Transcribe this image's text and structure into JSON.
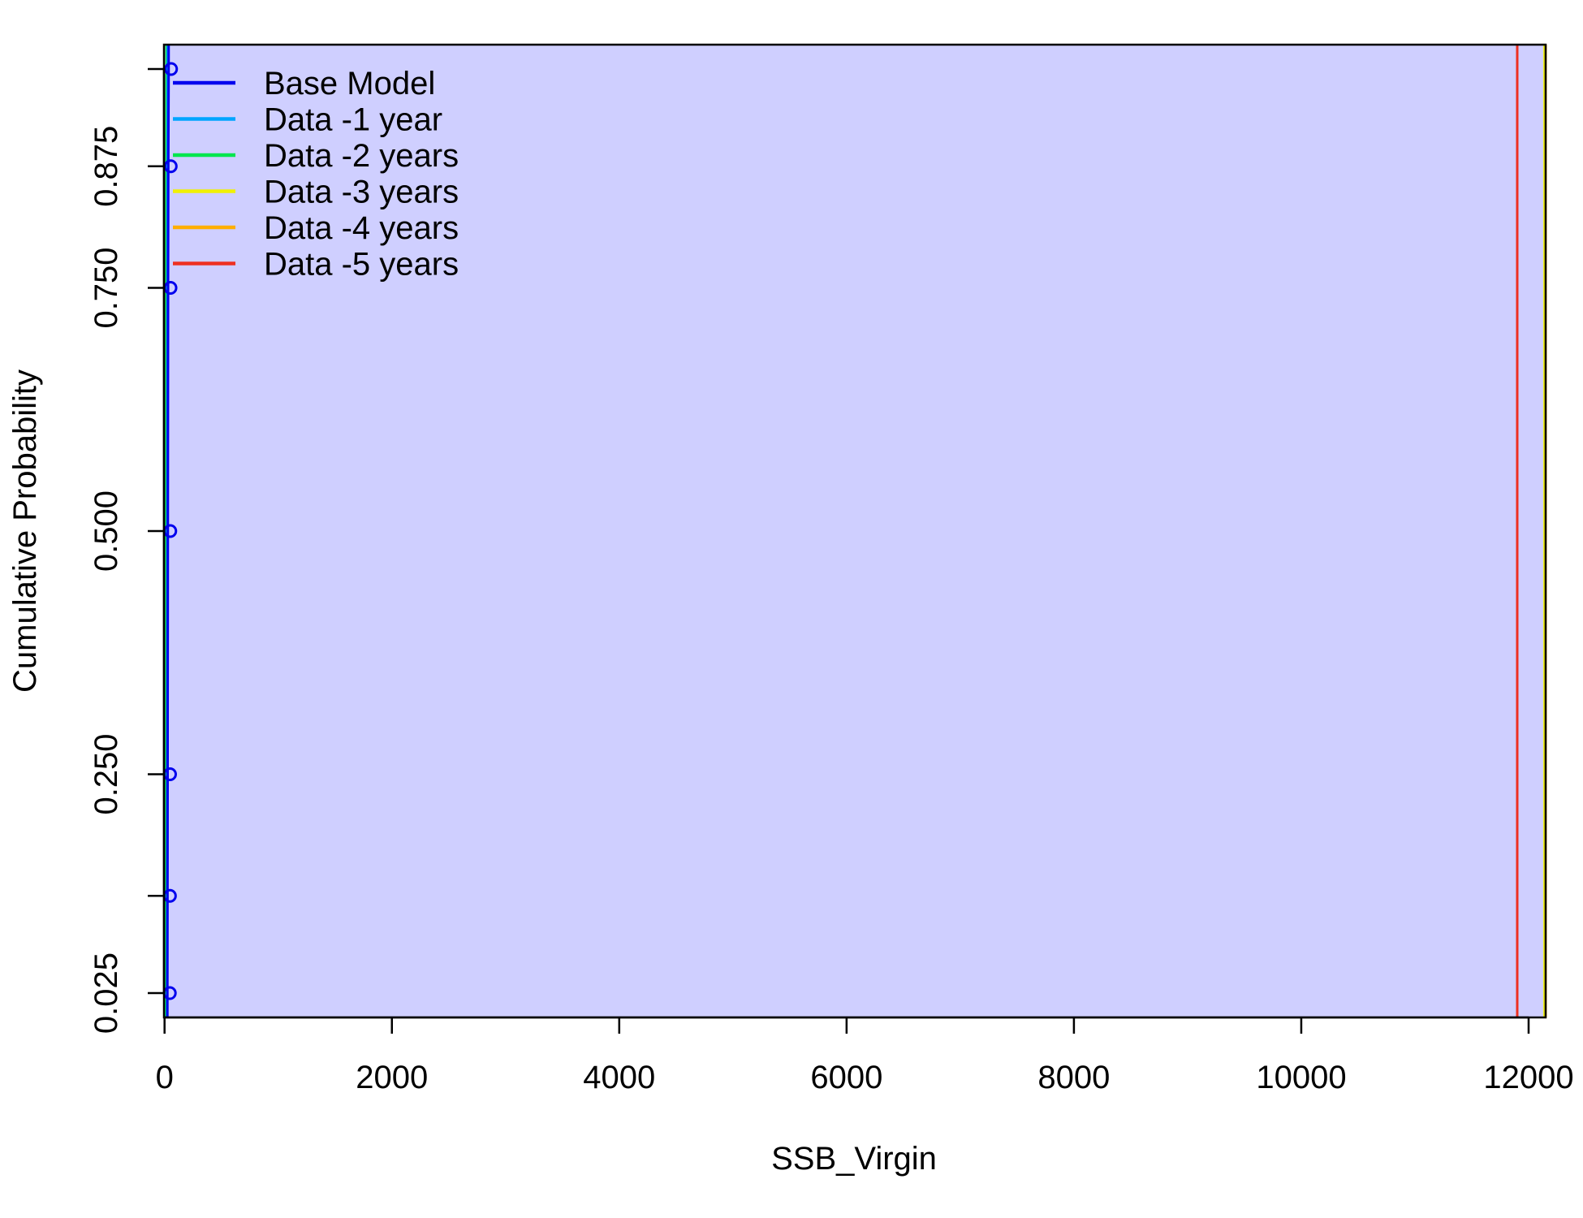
{
  "chart_data": {
    "type": "line",
    "xlabel": "SSB_Virgin",
    "ylabel": "Cumulative Probability",
    "xlim": [
      -5,
      12150
    ],
    "ylim": [
      0.0,
      1.0
    ],
    "x_ticks": [
      0,
      2000,
      4000,
      6000,
      8000,
      10000,
      12000
    ],
    "x_tick_labels": [
      "0",
      "2000",
      "4000",
      "6000",
      "8000",
      "10000",
      "12000"
    ],
    "y_ticks": [
      0.025,
      0.125,
      0.25,
      0.5,
      0.75,
      0.875,
      0.975
    ],
    "y_tick_labels": [
      "0.025",
      "",
      "0.250",
      "0.500",
      "0.750",
      "0.875",
      ""
    ],
    "background_color": "#CFCFFF",
    "legend_position": "top-left",
    "series": [
      {
        "name": "Base Model",
        "color": "#0000EE",
        "x": [
          25,
          26,
          27,
          29,
          31,
          33,
          36
        ],
        "y": [
          0.025,
          0.125,
          0.25,
          0.5,
          0.75,
          0.875,
          0.975
        ]
      },
      {
        "name": "Data -1 year",
        "color": "#00A5FF",
        "x": [
          22,
          23,
          24,
          25,
          26,
          27,
          28
        ],
        "y": [
          0.025,
          0.125,
          0.25,
          0.5,
          0.75,
          0.875,
          0.975
        ]
      },
      {
        "name": "Data -2 years",
        "color": "#00E64D",
        "x": [
          12,
          13,
          14,
          15,
          16,
          17,
          18
        ],
        "y": [
          0.025,
          0.125,
          0.25,
          0.5,
          0.75,
          0.875,
          0.975
        ]
      },
      {
        "name": "Data -3 years",
        "color": "#F0F000",
        "x": [
          12140,
          12140,
          12140,
          12140,
          12140,
          12140,
          12140
        ],
        "y": [
          0.025,
          0.125,
          0.25,
          0.5,
          0.75,
          0.875,
          0.975
        ]
      },
      {
        "name": "Data -4 years",
        "color": "#FFAE00",
        "x": [
          12150,
          12150,
          12150,
          12150,
          12150,
          12150,
          12150
        ],
        "y": [
          0.025,
          0.125,
          0.25,
          0.5,
          0.75,
          0.875,
          0.975
        ]
      },
      {
        "name": "Data -5 years",
        "color": "#EE3020",
        "x": [
          11900,
          11900,
          11900,
          11900,
          11900,
          11900,
          11900
        ],
        "y": [
          0.025,
          0.125,
          0.25,
          0.5,
          0.75,
          0.875,
          0.975
        ]
      }
    ]
  }
}
